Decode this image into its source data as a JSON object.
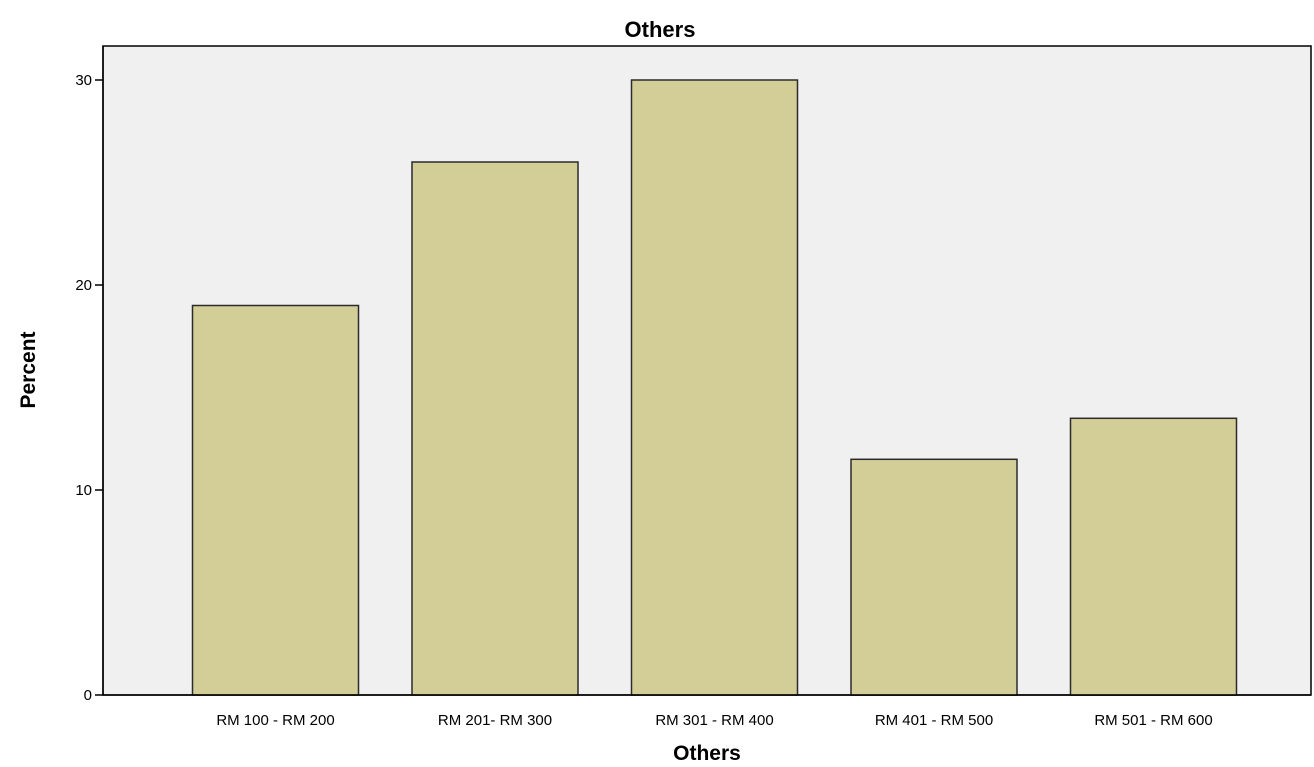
{
  "chart_data": {
    "type": "bar",
    "title": "Others",
    "xlabel": "Others",
    "ylabel": "Percent",
    "categories": [
      "RM 100 - RM 200",
      "RM 201- RM 300",
      "RM 301 - RM 400",
      "RM 401 - RM 500",
      "RM 501 - RM 600"
    ],
    "values": [
      19.0,
      26.0,
      30.0,
      11.5,
      13.5
    ],
    "ylim": [
      0,
      30
    ],
    "yticks": [
      "0",
      "10",
      "20",
      "30"
    ],
    "grid": false,
    "legend": "none",
    "colors": {
      "bar_fill": "#d3cd97",
      "bar_stroke": "#2b2b2b",
      "plot_background": "#f0f0f0",
      "axis": "#000000"
    }
  }
}
